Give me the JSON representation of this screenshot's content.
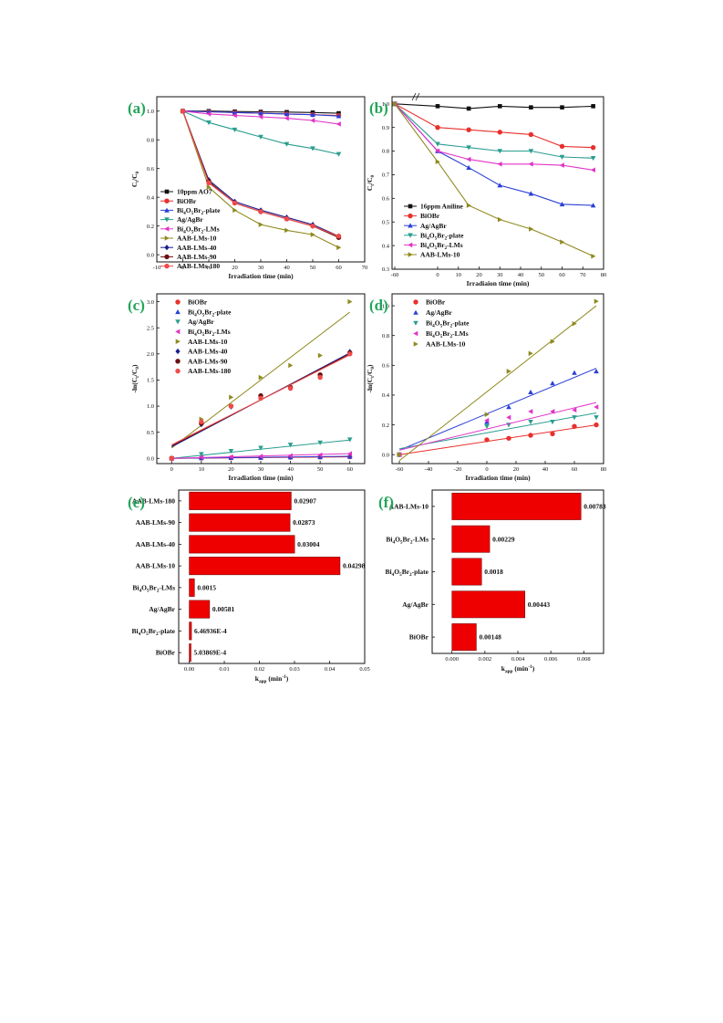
{
  "chart_data": [
    {
      "panel": "(a)",
      "type": "line",
      "xlabel": "Irradiation time (min)",
      "ylabel": "Ct/C0",
      "xlim": [
        -10,
        70
      ],
      "ylim": [
        -0.05,
        1.1
      ],
      "xticks": [
        "-10",
        "0",
        "10",
        "20",
        "30",
        "40",
        "50",
        "60",
        "70"
      ],
      "yticks": [
        "0.0",
        "0.2",
        "0.4",
        "0.6",
        "0.8",
        "1.0"
      ],
      "legend_position": "bottom-left",
      "series": [
        {
          "name": "10ppm AO7",
          "color": "#111111",
          "marker": "square",
          "x": [
            0,
            10,
            20,
            30,
            40,
            50,
            60
          ],
          "y": [
            1.0,
            1.0,
            0.997,
            0.995,
            0.993,
            0.99,
            0.985
          ]
        },
        {
          "name": "BiOBr",
          "color": "#e8302c",
          "marker": "circle",
          "x": [
            0,
            10,
            20,
            30,
            40,
            50,
            60
          ],
          "y": [
            1.0,
            0.995,
            0.99,
            0.985,
            0.98,
            0.975,
            0.97
          ]
        },
        {
          "name": "Bi4O5Br2-plate",
          "color": "#2a3fd6",
          "marker": "triangle-up",
          "x": [
            0,
            10,
            20,
            30,
            40,
            50,
            60
          ],
          "y": [
            1.0,
            0.995,
            0.99,
            0.985,
            0.98,
            0.975,
            0.965
          ]
        },
        {
          "name": "Ag/AgBr",
          "color": "#2a9d8f",
          "marker": "triangle-down",
          "x": [
            0,
            10,
            20,
            30,
            40,
            50,
            60
          ],
          "y": [
            1.0,
            0.92,
            0.87,
            0.82,
            0.77,
            0.74,
            0.7
          ]
        },
        {
          "name": "Bi4O5Br2-LMs",
          "color": "#e034c8",
          "marker": "triangle-left",
          "x": [
            0,
            10,
            20,
            30,
            40,
            50,
            60
          ],
          "y": [
            1.0,
            0.98,
            0.97,
            0.96,
            0.95,
            0.935,
            0.91
          ]
        },
        {
          "name": "AAB-LMs-10",
          "color": "#8f8a1e",
          "marker": "triangle-right",
          "x": [
            0,
            10,
            20,
            30,
            40,
            50,
            60
          ],
          "y": [
            1.0,
            0.47,
            0.31,
            0.21,
            0.17,
            0.14,
            0.05
          ]
        },
        {
          "name": "AAB-LMs-40",
          "color": "#1c1c8c",
          "marker": "diamond",
          "x": [
            0,
            10,
            20,
            30,
            40,
            50,
            60
          ],
          "y": [
            1.0,
            0.52,
            0.37,
            0.31,
            0.26,
            0.21,
            0.13
          ]
        },
        {
          "name": "AAB-LMs-90",
          "color": "#6b0f0f",
          "marker": "circle",
          "x": [
            0,
            10,
            20,
            30,
            40,
            50,
            60
          ],
          "y": [
            1.0,
            0.51,
            0.36,
            0.3,
            0.25,
            0.2,
            0.12
          ]
        },
        {
          "name": "AAB-LMs-180",
          "color": "#f04a4a",
          "marker": "circle",
          "x": [
            0,
            10,
            20,
            30,
            40,
            50,
            60
          ],
          "y": [
            1.0,
            0.5,
            0.36,
            0.3,
            0.25,
            0.2,
            0.13
          ]
        }
      ]
    },
    {
      "panel": "(b)",
      "type": "line",
      "xlabel": "Irradiaion time (min)",
      "ylabel": "Ct/C0",
      "xlim": [
        -60,
        80
      ],
      "ylim": [
        0.3,
        1.03
      ],
      "axis_break": true,
      "xticks": [
        "-60",
        "0",
        "10",
        "20",
        "30",
        "40",
        "50",
        "60",
        "70",
        "80"
      ],
      "yticks": [
        "0.3",
        "0.4",
        "0.5",
        "0.6",
        "0.7",
        "0.8",
        "0.9",
        "1.0"
      ],
      "legend_position": "bottom-left",
      "series": [
        {
          "name": "16ppm Aniline",
          "color": "#111111",
          "marker": "square",
          "x": [
            -60,
            0,
            15,
            30,
            45,
            60,
            75
          ],
          "y": [
            1.0,
            0.99,
            0.98,
            0.99,
            0.985,
            0.985,
            0.99
          ]
        },
        {
          "name": "BiOBr",
          "color": "#e8302c",
          "marker": "circle",
          "x": [
            -60,
            0,
            15,
            30,
            45,
            60,
            75
          ],
          "y": [
            1.0,
            0.9,
            0.89,
            0.88,
            0.87,
            0.82,
            0.815
          ]
        },
        {
          "name": "Ag/AgBr",
          "color": "#2a3fd6",
          "marker": "triangle-up",
          "x": [
            -60,
            0,
            15,
            30,
            45,
            60,
            75
          ],
          "y": [
            1.0,
            0.8,
            0.73,
            0.655,
            0.62,
            0.575,
            0.57
          ]
        },
        {
          "name": "Bi4O5Br2-plate",
          "color": "#2a9d8f",
          "marker": "triangle-down",
          "x": [
            -60,
            0,
            15,
            30,
            45,
            60,
            75
          ],
          "y": [
            1.0,
            0.83,
            0.815,
            0.8,
            0.8,
            0.775,
            0.77
          ]
        },
        {
          "name": "Bi4O5Br2-LMs",
          "color": "#e034c8",
          "marker": "triangle-left",
          "x": [
            -60,
            0,
            15,
            30,
            45,
            60,
            75
          ],
          "y": [
            1.0,
            0.8,
            0.765,
            0.745,
            0.745,
            0.74,
            0.72
          ]
        },
        {
          "name": "AAB-LMs-10",
          "color": "#8f8a1e",
          "marker": "triangle-right",
          "x": [
            -60,
            0,
            15,
            30,
            45,
            60,
            75
          ],
          "y": [
            1.0,
            0.755,
            0.57,
            0.51,
            0.47,
            0.415,
            0.355
          ]
        }
      ]
    },
    {
      "panel": "(c)",
      "type": "scatter",
      "xlabel": "Irradiation time (min)",
      "ylabel": "-ln(Ct/C0)",
      "xlim": [
        -5,
        65
      ],
      "ylim": [
        -0.1,
        3.15
      ],
      "xticks": [
        "0",
        "10",
        "20",
        "30",
        "40",
        "50",
        "60"
      ],
      "yticks": [
        "0.0",
        "0.5",
        "1.0",
        "1.5",
        "2.0",
        "2.5",
        "3.0"
      ],
      "legend_position": "top-left",
      "series": [
        {
          "name": "BiOBr",
          "color": "#e8302c",
          "marker": "circle",
          "x": [
            0,
            10,
            20,
            30,
            40,
            50,
            60
          ],
          "y": [
            0,
            0.005,
            0.01,
            0.015,
            0.02,
            0.025,
            0.03
          ],
          "fit": [
            0,
            0.03
          ]
        },
        {
          "name": "Bi4O5Br2-plate",
          "color": "#2a3fd6",
          "marker": "triangle-up",
          "x": [
            0,
            10,
            20,
            30,
            40,
            50,
            60
          ],
          "y": [
            0,
            0.005,
            0.01,
            0.015,
            0.02,
            0.025,
            0.035
          ],
          "fit": [
            0,
            0.04
          ]
        },
        {
          "name": "Ag/AgBr",
          "color": "#2a9d8f",
          "marker": "triangle-down",
          "x": [
            0,
            10,
            20,
            30,
            40,
            50,
            60
          ],
          "y": [
            0,
            0.08,
            0.14,
            0.2,
            0.26,
            0.3,
            0.36
          ],
          "fit": [
            0,
            0.35
          ]
        },
        {
          "name": "Bi4O5Br2-LMs",
          "color": "#e034c8",
          "marker": "triangle-left",
          "x": [
            0,
            10,
            20,
            30,
            40,
            50,
            60
          ],
          "y": [
            0,
            0.02,
            0.03,
            0.04,
            0.05,
            0.065,
            0.09
          ],
          "fit": [
            0,
            0.09
          ]
        },
        {
          "name": "AAB-LMs-10",
          "color": "#8f8a1e",
          "marker": "triangle-right",
          "x": [
            0,
            10,
            20,
            30,
            40,
            50,
            60
          ],
          "y": [
            0,
            0.75,
            1.17,
            1.55,
            1.78,
            1.97,
            3.0
          ],
          "fit": [
            0.2,
            2.8
          ]
        },
        {
          "name": "AAB-LMs-40",
          "color": "#1c1c8c",
          "marker": "diamond",
          "x": [
            0,
            10,
            20,
            30,
            40,
            50,
            60
          ],
          "y": [
            0,
            0.65,
            0.99,
            1.17,
            1.35,
            1.56,
            2.04
          ],
          "fit": [
            0.22,
            2.02
          ]
        },
        {
          "name": "AAB-LMs-90",
          "color": "#6b0f0f",
          "marker": "circle",
          "x": [
            0,
            10,
            20,
            30,
            40,
            50,
            60
          ],
          "y": [
            0,
            0.67,
            1.0,
            1.2,
            1.36,
            1.6,
            2.02
          ],
          "fit": [
            0.24,
            2.0
          ]
        },
        {
          "name": "AAB-LMs-180",
          "color": "#f04a4a",
          "marker": "circle",
          "x": [
            0,
            10,
            20,
            30,
            40,
            50,
            60
          ],
          "y": [
            0,
            0.7,
            1.0,
            1.15,
            1.34,
            1.55,
            2.0
          ],
          "fit": [
            0.26,
            1.98
          ]
        }
      ]
    },
    {
      "panel": "(d)",
      "type": "scatter",
      "xlabel": "Irradiation time (min)",
      "ylabel": "-ln(Ct/C0)",
      "xlim": [
        -65,
        80
      ],
      "ylim": [
        -0.06,
        1.08
      ],
      "xticks": [
        "-60",
        "-40",
        "-20",
        "0",
        "20",
        "40",
        "60",
        "80"
      ],
      "yticks": [
        "0.0",
        "0.2",
        "0.4",
        "0.6",
        "0.8",
        "1.0"
      ],
      "legend_position": "top-left",
      "series": [
        {
          "name": "BiOBr",
          "color": "#e8302c",
          "marker": "circle",
          "x": [
            -60,
            0,
            15,
            30,
            45,
            60,
            75
          ],
          "y": [
            0,
            0.1,
            0.11,
            0.13,
            0.14,
            0.19,
            0.2
          ],
          "fit": [
            0.0,
            0.2
          ]
        },
        {
          "name": "Ag/AgBr",
          "color": "#2a3fd6",
          "marker": "triangle-up",
          "x": [
            -60,
            0,
            15,
            30,
            45,
            60,
            75
          ],
          "y": [
            0,
            0.22,
            0.32,
            0.42,
            0.48,
            0.55,
            0.56
          ],
          "fit": [
            0.03,
            0.58
          ]
        },
        {
          "name": "Bi4O5Br2-plate",
          "color": "#2a9d8f",
          "marker": "triangle-down",
          "x": [
            -60,
            0,
            15,
            30,
            45,
            60,
            75
          ],
          "y": [
            0,
            0.19,
            0.2,
            0.22,
            0.22,
            0.25,
            0.25
          ],
          "fit": [
            0.04,
            0.28
          ]
        },
        {
          "name": "Bi4O5Br2-LMs",
          "color": "#e034c8",
          "marker": "triangle-left",
          "x": [
            -60,
            0,
            15,
            30,
            45,
            60,
            75
          ],
          "y": [
            0,
            0.23,
            0.25,
            0.29,
            0.29,
            0.3,
            0.32
          ],
          "fit": [
            0.03,
            0.35
          ]
        },
        {
          "name": "AAB-LMs-10",
          "color": "#8f8a1e",
          "marker": "triangle-right",
          "x": [
            -60,
            0,
            15,
            30,
            45,
            60,
            75
          ],
          "y": [
            0,
            0.27,
            0.56,
            0.68,
            0.76,
            0.88,
            1.03
          ],
          "fit": [
            -0.04,
            1.0
          ]
        }
      ]
    },
    {
      "panel": "(e)",
      "type": "bar",
      "orientation": "horizontal",
      "xlabel": "kapp (min-1)",
      "xlim": [
        -0.003,
        0.05
      ],
      "xticks": [
        "0.00",
        "0.01",
        "0.02",
        "0.03",
        "0.04",
        "0.05"
      ],
      "bar_color": "#ee0000",
      "categories": [
        "AAB-LMs-180",
        "AAB-LMs-90",
        "AAB-LMs-40",
        "AAB-LMs-10",
        "Bi4O5Br2-LMs",
        "Ag/AgBr",
        "Bi4O5Br2-plate",
        "BiOBr"
      ],
      "values": [
        0.02907,
        0.02873,
        0.03004,
        0.04298,
        0.0015,
        0.00581,
        0.000646936,
        0.000503869
      ],
      "data_labels": [
        "0.02907",
        "0.02873",
        "0.03004",
        "0.04298",
        "0.0015",
        "0.00581",
        "6.46936E-4",
        "5.03869E-4"
      ]
    },
    {
      "panel": "(f)",
      "type": "bar",
      "orientation": "horizontal",
      "xlabel": "kapp (min-1)",
      "xlim": [
        -0.0012,
        0.0092
      ],
      "xticks": [
        "0.000",
        "0.002",
        "0.004",
        "0.006",
        "0.008"
      ],
      "bar_color": "#ee0000",
      "categories": [
        "AAB-LMs-10",
        "Bi4O5Br2-LMs",
        "Bi4O5Br2-plate",
        "Ag/AgBr",
        "BiOBr"
      ],
      "values": [
        0.00783,
        0.00229,
        0.0018,
        0.00443,
        0.00148
      ],
      "data_labels": [
        "0.00783",
        "0.00229",
        "0.0018",
        "0.00443",
        "0.00148"
      ]
    }
  ]
}
